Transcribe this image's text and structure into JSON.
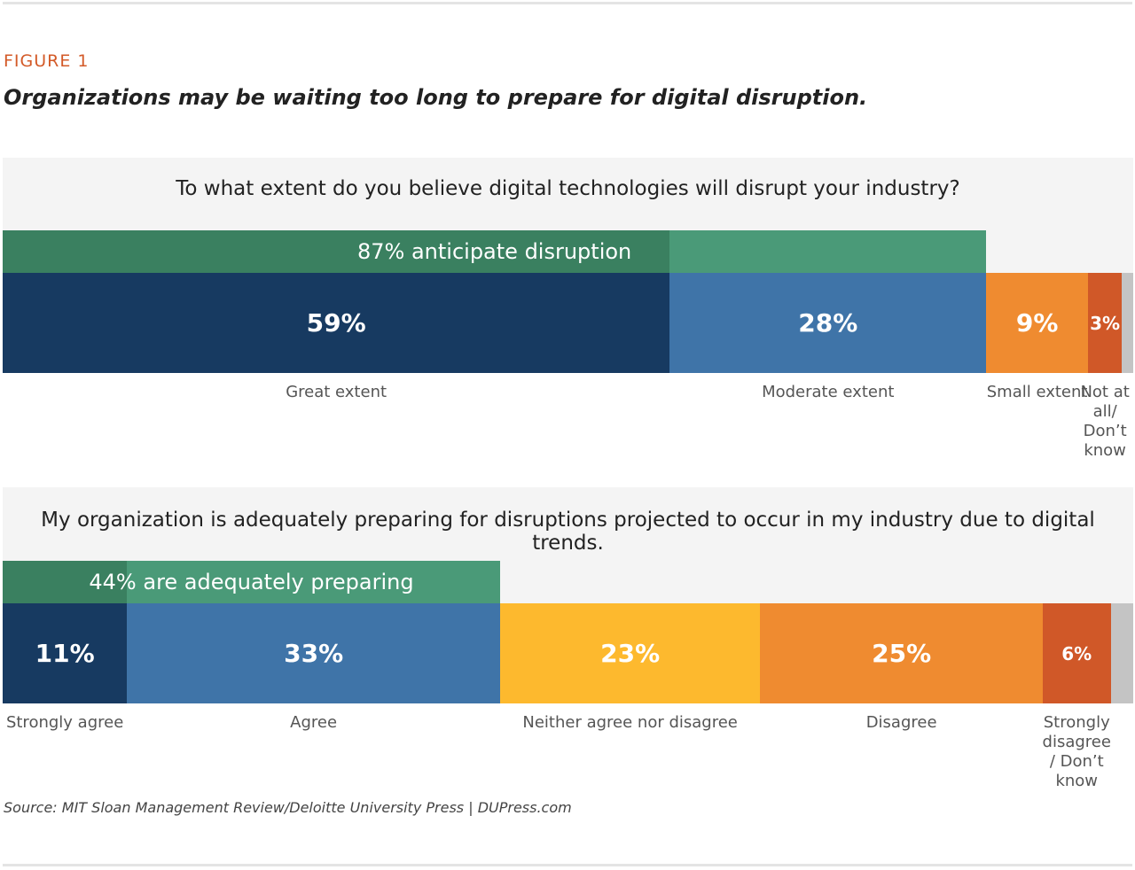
{
  "figure_label": "FIGURE 1",
  "title": "Organizations may be waiting too long to prepare for digital disruption.",
  "source": "Source: MIT Sloan Management Review/Deloitte University Press | DUPress.com",
  "chart_data": [
    {
      "type": "bar",
      "orientation": "horizontal-stacked",
      "title": "To what extent do you believe digital technologies will disrupt your industry?",
      "categories": [
        "Great extent",
        "Moderate extent",
        "Small extent",
        "Not at all/ Don’t know"
      ],
      "values": [
        59,
        28,
        9,
        3
      ],
      "labels": [
        "59%",
        "28%",
        "9%",
        "3%"
      ],
      "colors": [
        "#173a61",
        "#3f74a8",
        "#ef8b30",
        "#d05828"
      ],
      "remainder_color": "#c4c4c4",
      "bracket": {
        "label": "87% anticipate disruption",
        "spans": 2,
        "colors": [
          "#3a8060",
          "#4a9a78"
        ]
      }
    },
    {
      "type": "bar",
      "orientation": "horizontal-stacked",
      "title": "My organization is adequately preparing for disruptions projected to occur in my industry due to digital trends.",
      "categories": [
        "Strongly agree",
        "Agree",
        "Neither agree nor disagree",
        "Disagree",
        "Strongly disagree / Don’t know"
      ],
      "values": [
        11,
        33,
        23,
        25,
        6
      ],
      "labels": [
        "11%",
        "33%",
        "23%",
        "25%",
        "6%"
      ],
      "colors": [
        "#173a61",
        "#3f74a8",
        "#fdb92e",
        "#ef8b30",
        "#d05828"
      ],
      "remainder_color": "#c4c4c4",
      "bracket": {
        "label": "44% are adequately preparing",
        "spans": 2,
        "colors": [
          "#3a8060",
          "#4a9a78"
        ]
      }
    }
  ]
}
